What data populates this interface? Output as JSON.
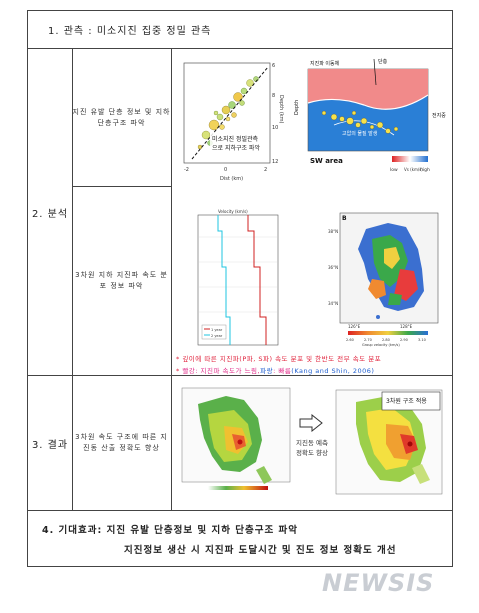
{
  "header": {
    "title": "1. 관측 : 미소지진 집중 정밀 관측"
  },
  "section_analysis": {
    "label": "2. 분석",
    "sub1": {
      "text": "지진 유발 단층 정보 및 지하 단층구조 파악",
      "plot_annotation": "미소지진 정밀관측으로 지하구조 파악",
      "xlabel": "Dist (km)",
      "ylabel": "Depth (km)",
      "x_ticks": [
        "-2",
        "0",
        "2"
      ],
      "y_ticks": [
        "6",
        "8",
        "10",
        "12"
      ],
      "cross_section": {
        "fault_label": "단층",
        "surface_label": "지진파 이동체",
        "depth_label": "Depth",
        "inner_label": "고압의 물질 발생",
        "right_label": "전지중",
        "bottom_label": "SW area",
        "legend_low": "low",
        "legend_high": "high",
        "legend_unit": "Vs (km/s)"
      }
    },
    "sub2": {
      "text": "3차원 지하 지진파 속도 분포 정보 파악",
      "profile_title": "Velocity (km/s)",
      "legend": [
        "1 year",
        "2 year"
      ],
      "map_panel_label": "B",
      "map_lat_ticks": [
        "38°N",
        "36°N",
        "34°N"
      ],
      "map_lon_ticks": [
        "126°E",
        "128°E"
      ],
      "colorbar_ticks": [
        "2.60",
        "2.70",
        "2.80",
        "2.90",
        "3.10"
      ],
      "colorbar_label": "Group velocity (km/s)"
    },
    "note1": "* 깊이에 따른 지진파(P파, S파) 속도 분포 및 한반도 전부 속도 분포",
    "note2": {
      "prefix": "* ",
      "red_label": "빨강",
      "middle": ": 지진파 속도가 느림,",
      "blue_label": "파랑",
      "end": ": 빠름",
      "cite": "(Kang and Shin, 2006)"
    }
  },
  "section_result": {
    "label": "3. 결과",
    "sub": {
      "text": "3차원 속도 구조에 따른 지진동 산출 정확도 향상"
    },
    "arrow_label": "지진동 예측 정확도 향상",
    "map_annotation": "3차원 구조 적용"
  },
  "footer": {
    "line1": "4. 기대효과:  지진 유발 단층정보 및 지하 단층구조 파악",
    "line2": "지진정보 생산 시 지진파 도달시간 및 진도 정보 정확도 개선"
  },
  "watermark": "NEWSIS",
  "colors": {
    "accent_red": "#e0203a",
    "accent_pink": "#e22c8a",
    "accent_blue": "#1f5fd0",
    "frame": "#444444"
  }
}
